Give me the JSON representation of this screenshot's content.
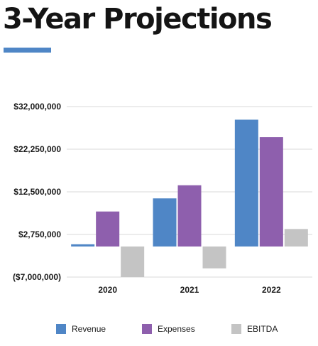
{
  "title": "3-Year Projections",
  "colors": {
    "accent": "#4f86c6",
    "revenue": "#4f86c6",
    "expenses": "#8e5fad",
    "ebitda": "#c4c4c4",
    "grid": "#d9d9d9"
  },
  "chart_data": {
    "type": "bar",
    "categories": [
      "2020",
      "2021",
      "2022"
    ],
    "series": [
      {
        "name": "Revenue",
        "values": [
          500000,
          11000000,
          29000000
        ]
      },
      {
        "name": "Expenses",
        "values": [
          8000000,
          14000000,
          25000000
        ]
      },
      {
        "name": "EBITDA",
        "values": [
          -7000000,
          -5000000,
          4000000
        ]
      }
    ],
    "y_ticks": [
      -7000000,
      2750000,
      12500000,
      22250000,
      32000000
    ],
    "y_tick_labels": [
      "($7,000,000)",
      "$2,750,000",
      "$12,500,000",
      "$22,250,000",
      "$32,000,000"
    ],
    "ylim": [
      -7000000,
      32000000
    ],
    "grid": true,
    "legend_position": "bottom"
  }
}
